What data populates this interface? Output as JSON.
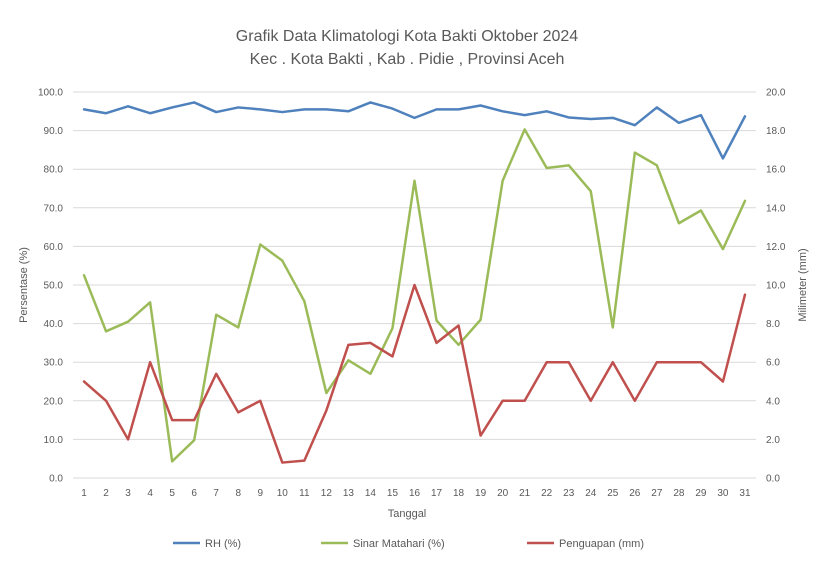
{
  "chart_data": {
    "type": "line",
    "title": "Grafik Data Klimatologi Kota Bakti Oktober 2024",
    "subtitle": "Kec . Kota Bakti , Kab . Pidie , Provinsi  Aceh",
    "xlabel": "Tanggal",
    "ylabel_left": "Persentase (%)",
    "ylabel_right": "Milimeter (mm)",
    "ylim_left": [
      0,
      100
    ],
    "ylim_right": [
      0,
      20
    ],
    "yticks_left": [
      "0.0",
      "10.0",
      "20.0",
      "30.0",
      "40.0",
      "50.0",
      "60.0",
      "70.0",
      "80.0",
      "90.0",
      "100.0"
    ],
    "yticks_right": [
      "0.0",
      "2.0",
      "4.0",
      "6.0",
      "8.0",
      "10.0",
      "12.0",
      "14.0",
      "16.0",
      "18.0",
      "20.0"
    ],
    "grid": true,
    "legend_position": "bottom",
    "categories": [
      "1",
      "2",
      "3",
      "4",
      "5",
      "6",
      "7",
      "8",
      "9",
      "10",
      "11",
      "12",
      "13",
      "14",
      "15",
      "16",
      "17",
      "18",
      "19",
      "20",
      "21",
      "22",
      "23",
      "24",
      "25",
      "26",
      "27",
      "28",
      "29",
      "30",
      "31"
    ],
    "series": [
      {
        "name": "RH (%)",
        "axis": "left",
        "color": "#4f81bd",
        "values": [
          95.5,
          94.5,
          96.3,
          94.5,
          96.0,
          97.3,
          94.8,
          96.0,
          95.5,
          94.8,
          95.5,
          95.5,
          95.0,
          97.3,
          95.7,
          93.3,
          95.5,
          95.5,
          96.5,
          95.0,
          94.0,
          95.0,
          93.4,
          93.0,
          93.3,
          91.4,
          96.0,
          92.0,
          94.0,
          82.8,
          93.7
        ]
      },
      {
        "name": "Sinar Matahari (%)",
        "axis": "left",
        "color": "#9bbb59",
        "values": [
          52.5,
          38.0,
          40.5,
          45.5,
          4.3,
          9.8,
          42.3,
          39.0,
          60.5,
          56.3,
          45.8,
          22.0,
          30.5,
          27.0,
          38.8,
          77.0,
          40.8,
          34.5,
          41.0,
          77.0,
          90.3,
          80.3,
          81.0,
          74.3,
          39.0,
          84.3,
          81.0,
          66.0,
          69.3,
          59.3,
          71.8
        ]
      },
      {
        "name": "Penguapan (mm)",
        "axis": "right",
        "color": "#c0504d",
        "values": [
          5.0,
          4.0,
          2.0,
          6.0,
          3.0,
          3.0,
          5.4,
          3.4,
          4.0,
          0.8,
          0.9,
          3.5,
          6.9,
          7.0,
          6.3,
          10.0,
          7.0,
          7.9,
          2.2,
          4.0,
          4.0,
          6.0,
          6.0,
          4.0,
          6.0,
          4.0,
          6.0,
          6.0,
          6.0,
          5.0,
          9.5
        ]
      }
    ]
  }
}
